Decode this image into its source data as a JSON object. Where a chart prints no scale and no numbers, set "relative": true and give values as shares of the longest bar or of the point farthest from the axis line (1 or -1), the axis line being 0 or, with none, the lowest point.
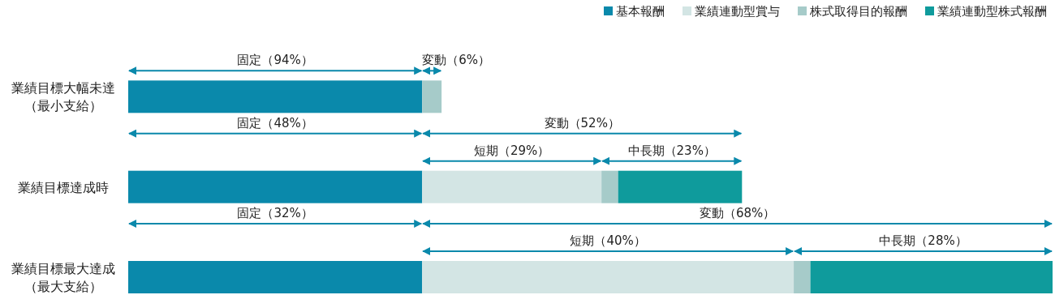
{
  "chart_data": {
    "type": "bar",
    "orientation": "horizontal",
    "stacked": true,
    "relative": true,
    "legend": "top right",
    "categories": [
      "業績目標大幅未達（最小支給）",
      "業績目標達成時",
      "業績目標最大達成（最大支給）"
    ],
    "series": [
      {
        "name": "基本報酬",
        "color": "#0a89ab",
        "values": [
          0.318,
          0.318,
          0.318
        ]
      },
      {
        "name": "業績連動型賞与",
        "color": "#d3e5e4",
        "values": [
          0,
          0.194,
          0.402
        ]
      },
      {
        "name": "株式取得目的報酬",
        "color": "#a6cbc9",
        "values": [
          0.021,
          0.018,
          0.018
        ]
      },
      {
        "name": "業績連動型株式報酬",
        "color": "#0f9b9c",
        "values": [
          0,
          0.134,
          0.262
        ]
      }
    ],
    "annotations": [
      "固定（94%）",
      "変動（6%）",
      "固定（48%）",
      "変動（52%）",
      "短期（29%）",
      "中長期（23%）",
      "固定（32%）",
      "変動（68%）",
      "短期（40%）",
      "中長期（28%）"
    ]
  }
}
